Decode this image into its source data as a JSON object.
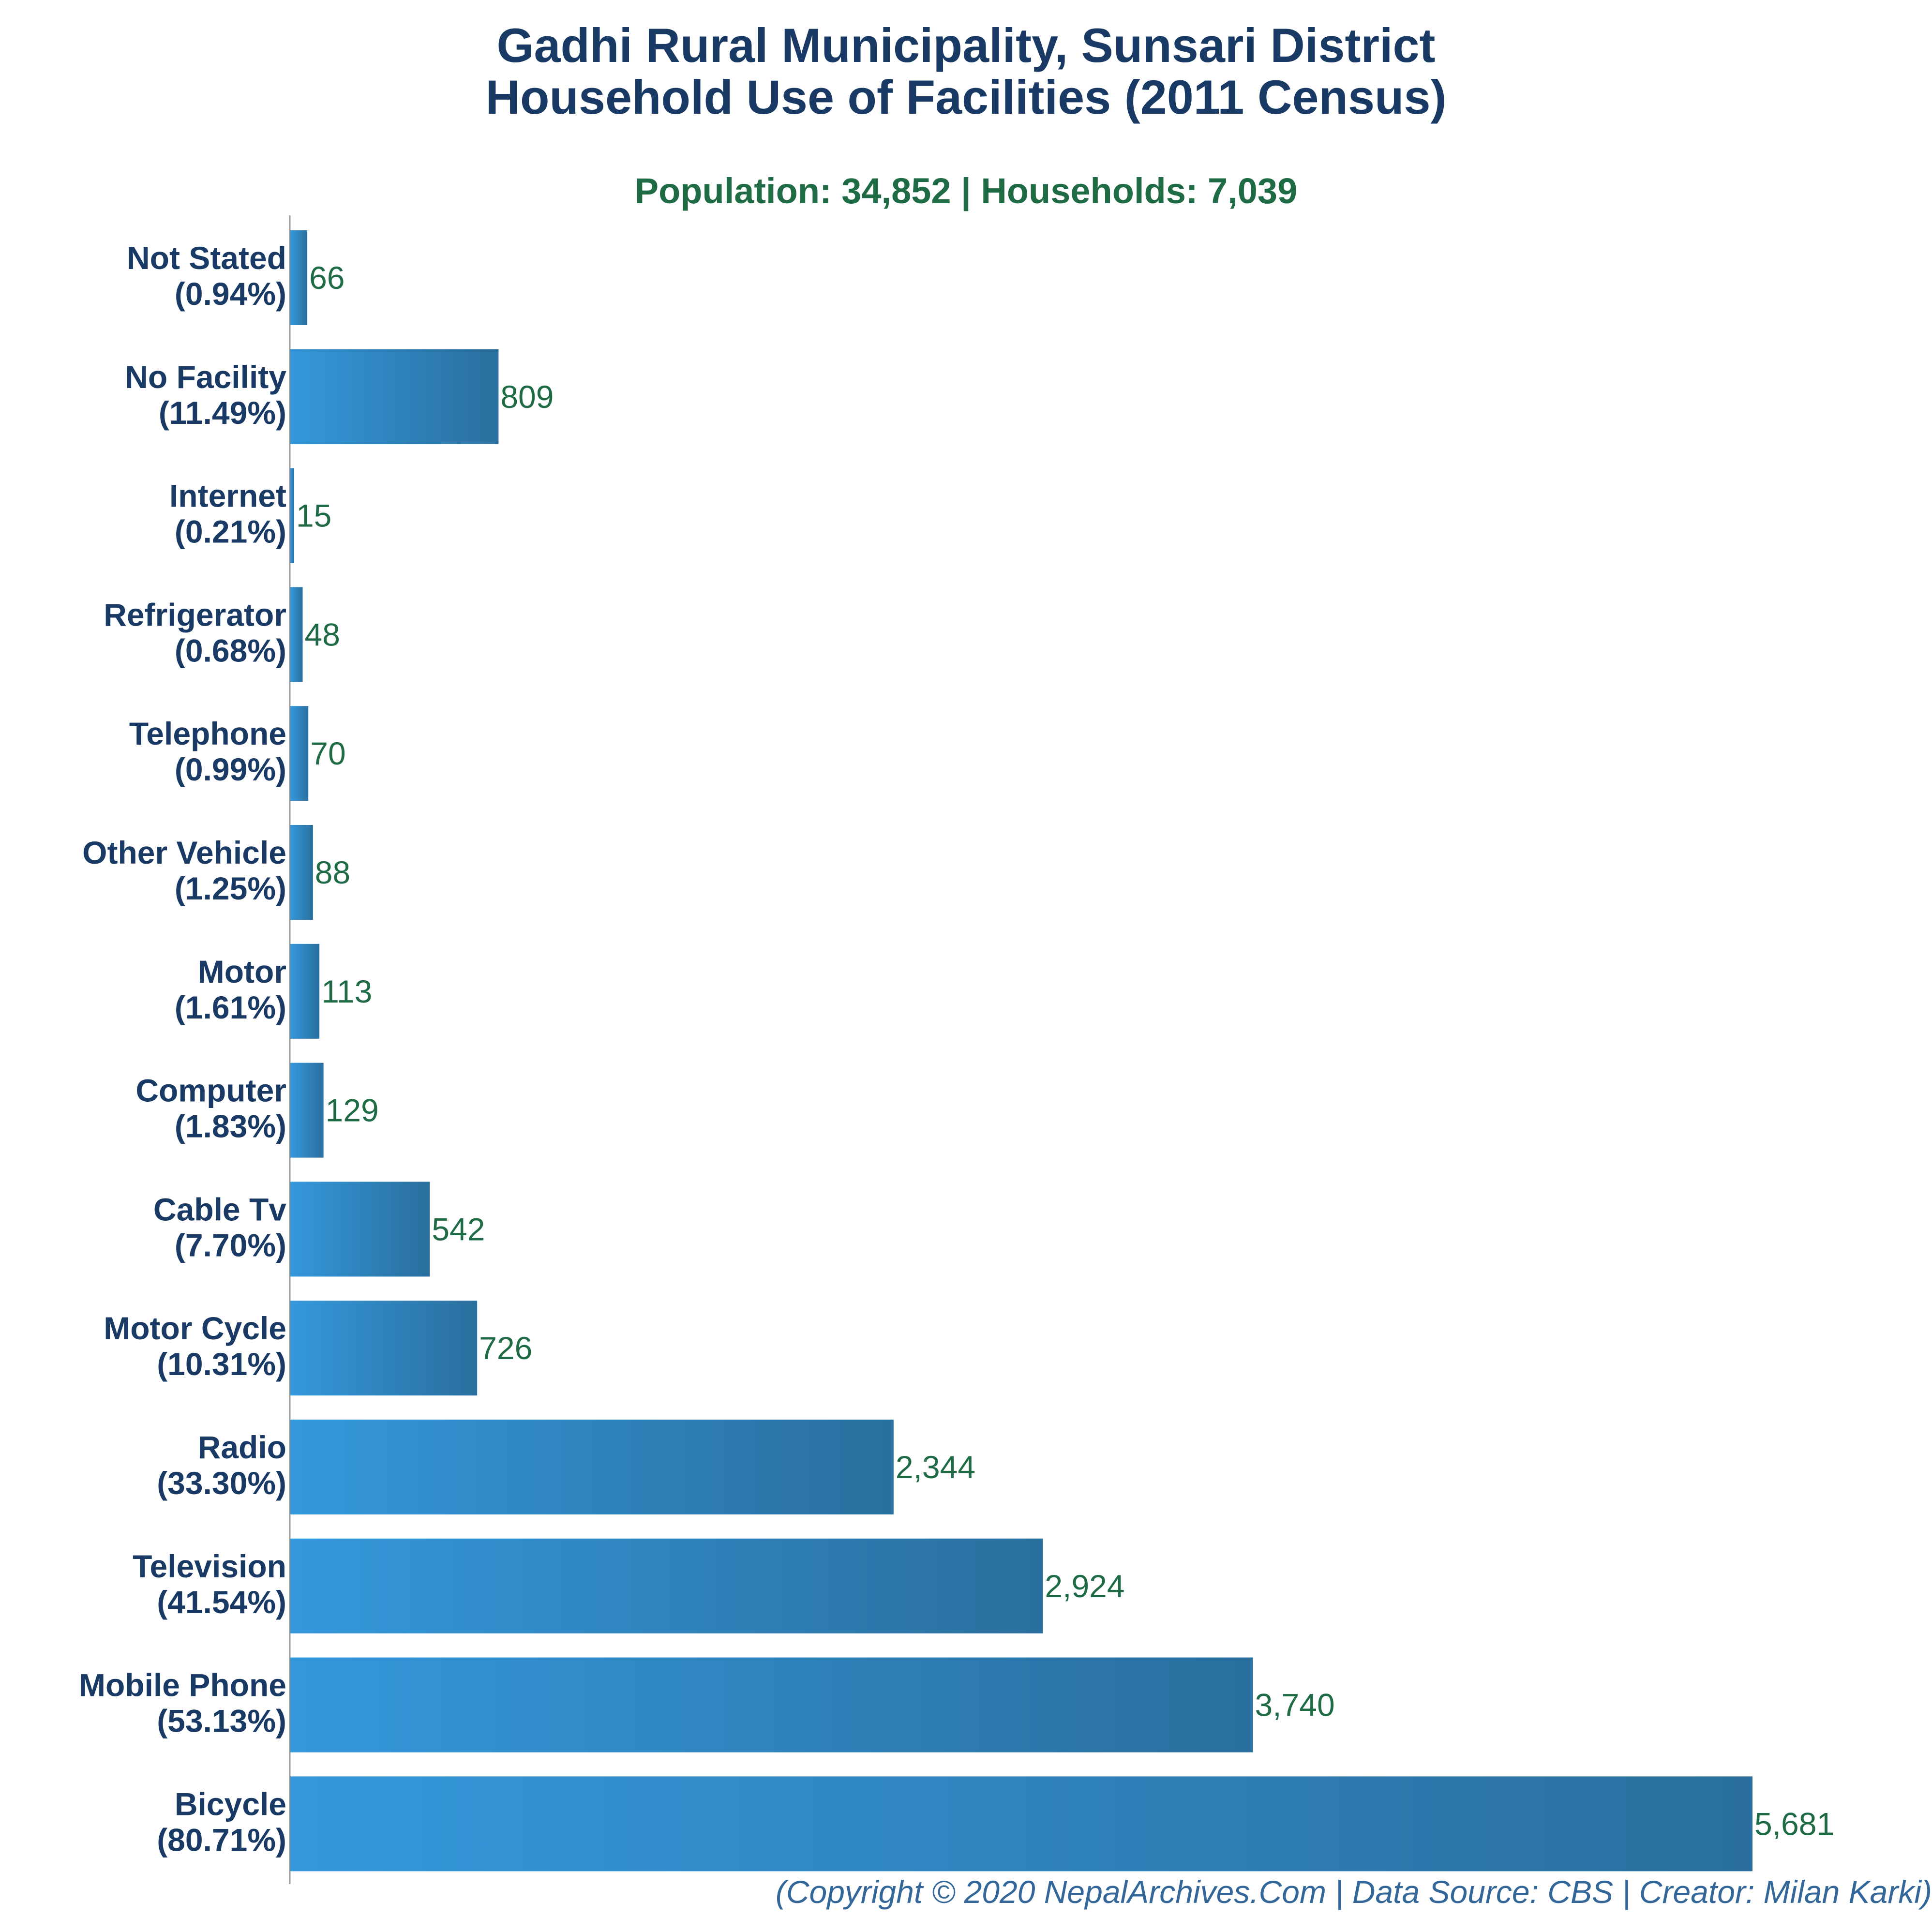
{
  "title_line1": "Gadhi Rural Municipality, Sunsari District",
  "title_line2": "Household Use of Facilities (2011 Census)",
  "subtitle": "Population: 34,852 | Households: 7,039",
  "footer": "(Copyright © 2020 NepalArchives.Com | Data Source: CBS | Creator: Milan Karki)",
  "colors": {
    "bar_start": "#3498db",
    "bar_end": "#2a6f9e",
    "axis": "#999999",
    "title": "#1a3a66",
    "values": "#1f6b45"
  },
  "chart_data": {
    "type": "bar",
    "orientation": "horizontal",
    "categories": [
      "Not Stated",
      "No Facility",
      "Internet",
      "Refrigerator",
      "Telephone",
      "Other Vehicle",
      "Motor",
      "Computer",
      "Cable Tv",
      "Motor Cycle",
      "Radio",
      "Television",
      "Mobile Phone",
      "Bicycle"
    ],
    "percent_labels": [
      "(0.94%)",
      "(11.49%)",
      "(0.21%)",
      "(0.68%)",
      "(0.99%)",
      "(1.25%)",
      "(1.61%)",
      "(1.83%)",
      "(7.70%)",
      "(10.31%)",
      "(33.30%)",
      "(41.54%)",
      "(53.13%)",
      "(80.71%)"
    ],
    "values": [
      66,
      809,
      15,
      48,
      70,
      88,
      113,
      129,
      542,
      726,
      2344,
      2924,
      3740,
      5681
    ],
    "value_labels": [
      "66",
      "809",
      "15",
      "48",
      "70",
      "88",
      "113",
      "129",
      "542",
      "726",
      "2,344",
      "2,924",
      "3,740",
      "5,681"
    ],
    "xlim": [
      0,
      5681
    ],
    "grid": false,
    "legend": "none"
  }
}
